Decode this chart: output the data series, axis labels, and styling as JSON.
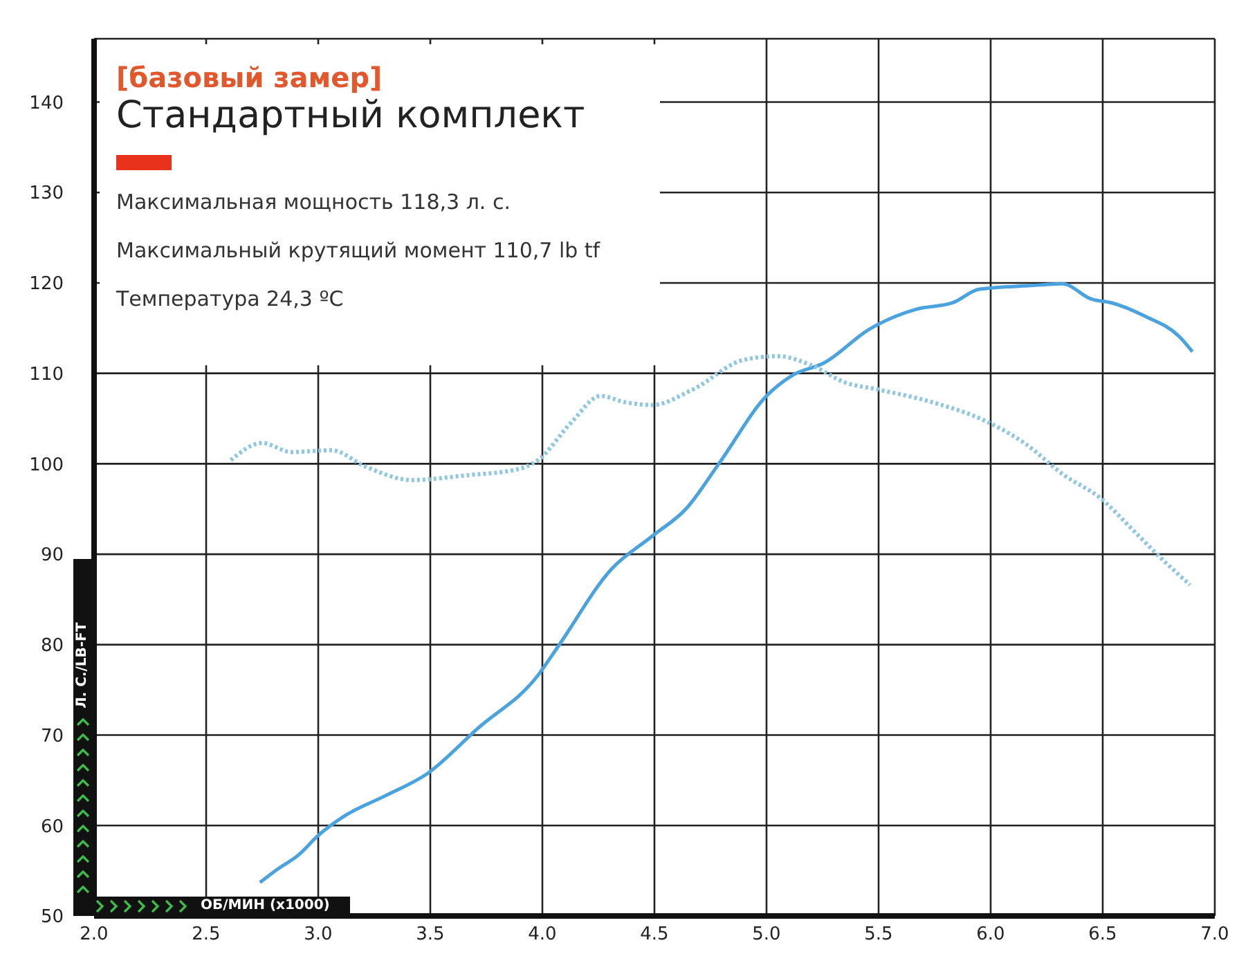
{
  "chart_data": {
    "type": "line",
    "subtitle": "[базовый замер]",
    "title": "Стандартный комплект",
    "annotations": [
      "Максимальная мощность 118,3 л. с.",
      "Максимальный крутящий момент 110,7 lb tf",
      "Температура 24,3 ºC"
    ],
    "xlabel": "ОБ/МИН (x1000)",
    "ylabel": "Л. С./LB-FT",
    "xlim": [
      2,
      7
    ],
    "xticks": [
      {
        "value": 2,
        "label": "2.0"
      },
      {
        "value": 2.5,
        "label": "2.5"
      },
      {
        "value": 3,
        "label": "3.0"
      },
      {
        "value": 3.5,
        "label": "3.5"
      },
      {
        "value": 4,
        "label": "4.0"
      },
      {
        "value": 4.5,
        "label": "4.5"
      },
      {
        "value": 5,
        "label": "5.0"
      },
      {
        "value": 5.5,
        "label": "5.5"
      },
      {
        "value": 6,
        "label": "6.0"
      },
      {
        "value": 6.5,
        "label": "6.5"
      },
      {
        "value": 7,
        "label": "7.0"
      }
    ],
    "ylim": [
      50,
      147
    ],
    "yticks": [
      50,
      60,
      70,
      80,
      90,
      100,
      110,
      120,
      130,
      140
    ],
    "grid": true,
    "marker": "none",
    "series": [
      {
        "color": "#4aa3df",
        "line_style": "solid",
        "x": [
          2.74,
          2.82,
          2.91,
          3.0,
          3.12,
          3.3,
          3.49,
          3.71,
          3.98,
          4.07,
          4.31,
          4.49,
          4.64,
          4.79,
          5.0,
          5.11,
          5.26,
          5.46,
          5.67,
          5.83,
          5.95,
          6.18,
          6.32,
          6.45,
          6.54,
          6.69,
          6.84,
          6.9
        ],
        "values": [
          53.7,
          55.2,
          56.7,
          58.9,
          61.1,
          63.3,
          65.8,
          70.7,
          76.6,
          79.8,
          88.4,
          92,
          95,
          100.1,
          107.5,
          109.7,
          111.2,
          114.9,
          117.1,
          117.8,
          119.3,
          119.7,
          119.9,
          118.2,
          117.8,
          116.3,
          114.1,
          112.4
        ]
      },
      {
        "color": "#8fc6e0",
        "line_style": "dotted",
        "x": [
          2.61,
          2.75,
          2.88,
          3.06,
          3.21,
          3.42,
          3.65,
          3.89,
          3.98,
          4.13,
          4.26,
          4.37,
          4.49,
          4.67,
          4.9,
          5.05,
          5.2,
          5.35,
          5.5,
          5.74,
          5.98,
          6.15,
          6.33,
          6.49,
          6.63,
          6.75,
          6.89
        ],
        "values": [
          100.4,
          102.3,
          101.3,
          101.5,
          99.7,
          98.2,
          98.7,
          99.4,
          100.4,
          104.6,
          107.5,
          106.8,
          106.5,
          108.2,
          111.5,
          111.9,
          110.9,
          109,
          108.2,
          106.8,
          104.7,
          102.3,
          98.7,
          96.2,
          92.8,
          89.8,
          86.6
        ]
      }
    ]
  }
}
